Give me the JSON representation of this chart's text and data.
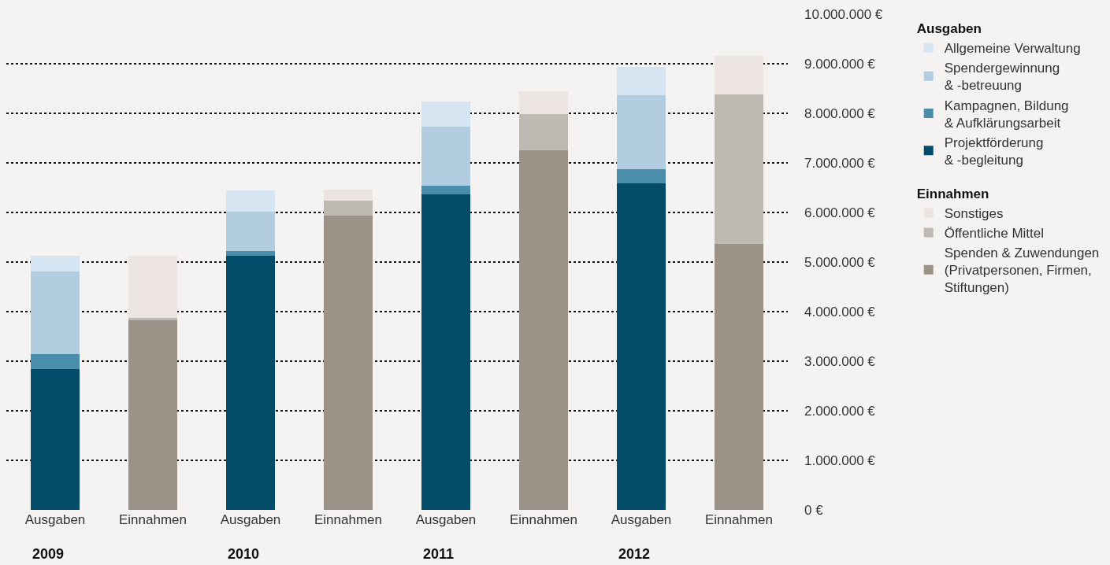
{
  "chart_data": {
    "type": "bar",
    "stacked": true,
    "categories": [
      "Ausgaben",
      "Einnahmen",
      "Ausgaben",
      "Einnahmen",
      "Ausgaben",
      "Einnahmen",
      "Ausgaben",
      "Einnahmen"
    ],
    "series": [
      {
        "name": "Projektförderung\n& -begleitung",
        "color": "#034d6a",
        "values": [
          2840000,
          null,
          5130000,
          null,
          6360000,
          null,
          6580000,
          null
        ]
      },
      {
        "name": "Kampagnen, Bildung\n& Aufklärungsarbeit",
        "color": "#4a8eab",
        "values": [
          300000,
          null,
          100000,
          null,
          180000,
          null,
          300000,
          null
        ]
      },
      {
        "name": "Spendergewinnung\n& -betreuung",
        "color": "#b1cddf",
        "values": [
          1670000,
          null,
          780000,
          null,
          1190000,
          null,
          1480000,
          null
        ]
      },
      {
        "name": "Allgemeine Verwaltung",
        "color": "#d5e6f2",
        "values": [
          320000,
          null,
          430000,
          null,
          510000,
          null,
          570000,
          null
        ]
      },
      {
        "name": "Spenden & Zuwendungen\n(Privatpersonen, Firmen,\nStiftungen)",
        "color": "#9b9288",
        "values": [
          null,
          3820000,
          null,
          5940000,
          null,
          7250000,
          null,
          5370000
        ]
      },
      {
        "name": "Öffentliche Mittel",
        "color": "#beb9b2",
        "values": [
          null,
          60000,
          null,
          300000,
          null,
          730000,
          null,
          3010000
        ]
      },
      {
        "name": "Sonstiges",
        "color": "#ebe4e1",
        "values": [
          null,
          1240000,
          null,
          220000,
          null,
          460000,
          null,
          780000
        ]
      }
    ],
    "ylim": [
      0,
      10000000
    ],
    "yticks": [
      {
        "value": 0,
        "label": "0 €"
      },
      {
        "value": 1000000,
        "label": "1.000.000 €"
      },
      {
        "value": 2000000,
        "label": "2.000.000 €"
      },
      {
        "value": 3000000,
        "label": "3.000.000 €"
      },
      {
        "value": 4000000,
        "label": "4.000.000 €"
      },
      {
        "value": 5000000,
        "label": "5.000.000 €"
      },
      {
        "value": 6000000,
        "label": "6.000.000 €"
      },
      {
        "value": 7000000,
        "label": "7.000.000 €"
      },
      {
        "value": 8000000,
        "label": "8.000.000 €"
      },
      {
        "value": 9000000,
        "label": "9.000.000 €"
      },
      {
        "value": 10000000,
        "label": "10.000.000 €"
      }
    ],
    "grid": "y",
    "legend": "right",
    "annotations": [
      "2009",
      "2010",
      "2011",
      "2012",
      "Einnahmen",
      "Ausgaben"
    ]
  }
}
